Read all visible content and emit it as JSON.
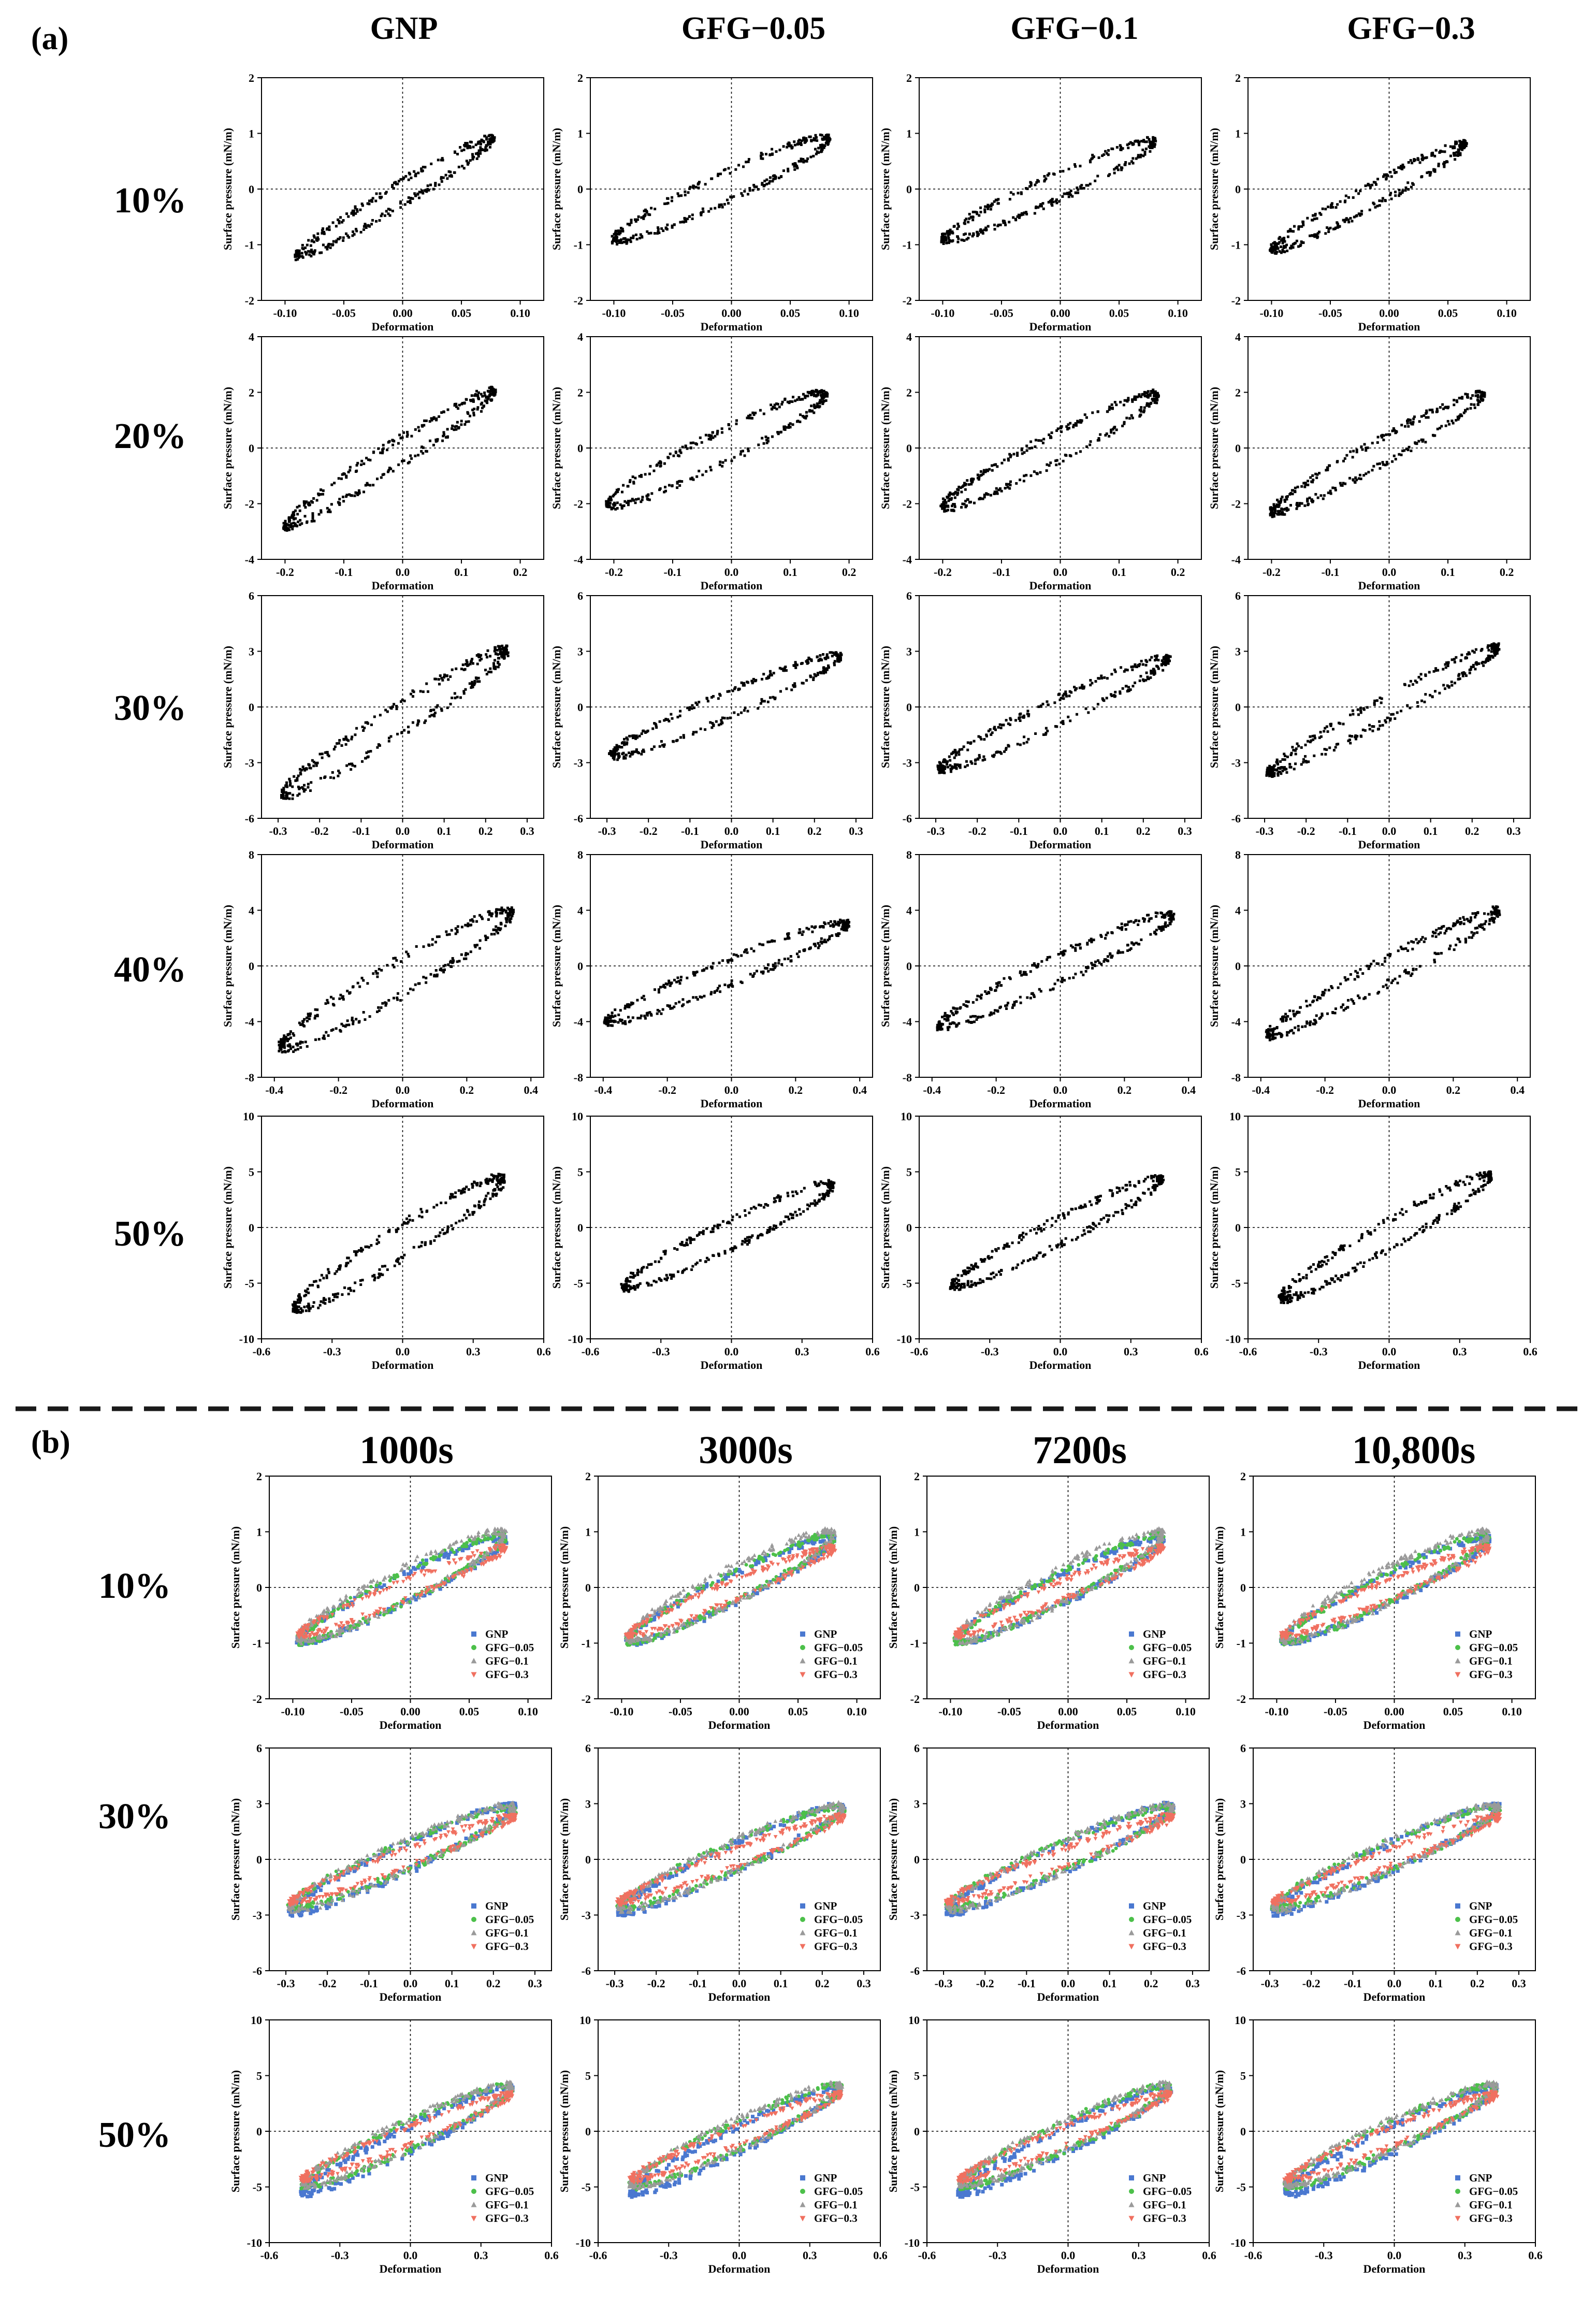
{
  "panel_labels": {
    "a": "(a)",
    "b": "(b)"
  },
  "column_headers_a": [
    "GNP",
    "GFG−0.05",
    "GFG−0.1",
    "GFG−0.3"
  ],
  "column_headers_b": [
    "1000s",
    "3000s",
    "7200s",
    "10,800s"
  ],
  "row_labels_a": [
    "10%",
    "20%",
    "30%",
    "40%",
    "50%"
  ],
  "row_labels_b": [
    "10%",
    "30%",
    "50%"
  ],
  "axis_labels": {
    "x": "Deformation",
    "y": "Surface pressure (mN/m)"
  },
  "legend": [
    {
      "name": "GNP",
      "color": "#4a78d0",
      "marker": "square"
    },
    {
      "name": "GFG−0.05",
      "color": "#4cc04a",
      "marker": "circle"
    },
    {
      "name": "GFG−0.1",
      "color": "#9a9a9a",
      "marker": "triangle-up"
    },
    {
      "name": "GFG−0.3",
      "color": "#f07060",
      "marker": "triangle-down"
    }
  ],
  "chart_data": [
    {
      "type": "scatter",
      "panel": "a",
      "row_label": "10%",
      "strain": 0.1,
      "x_range": [
        -0.12,
        0.12
      ],
      "x_ticks": [
        -0.1,
        -0.05,
        0.0,
        0.05,
        0.1
      ],
      "x_tick_labels": [
        "-0.10",
        "-0.05",
        "0.00",
        "0.05",
        "0.10"
      ],
      "y_range": [
        -2,
        2
      ],
      "y_ticks": [
        -2,
        -1,
        0,
        1,
        2
      ],
      "y_tick_labels": [
        "-2",
        "-1",
        "0",
        "1",
        "2"
      ],
      "series": [
        {
          "column": "GNP",
          "x_min": -0.09,
          "x_max": 0.077,
          "y_at_min": -1.2,
          "y_at_max": 0.9,
          "loop_width": 0.35
        },
        {
          "column": "GFG−0.05",
          "x_min": -0.1,
          "x_max": 0.083,
          "y_at_min": -0.9,
          "y_at_max": 0.9,
          "loop_width": 0.45
        },
        {
          "column": "GFG−0.1",
          "x_min": -0.1,
          "x_max": 0.08,
          "y_at_min": -0.9,
          "y_at_max": 0.85,
          "loop_width": 0.4
        },
        {
          "column": "GFG−0.3",
          "x_min": -0.1,
          "x_max": 0.065,
          "y_at_min": -1.1,
          "y_at_max": 0.8,
          "loop_width": 0.35
        }
      ]
    },
    {
      "type": "scatter",
      "panel": "a",
      "row_label": "20%",
      "strain": 0.2,
      "x_range": [
        -0.24,
        0.24
      ],
      "x_ticks": [
        -0.2,
        -0.1,
        0.0,
        0.1,
        0.2
      ],
      "x_tick_labels": [
        "-0.2",
        "-0.1",
        "0.0",
        "0.1",
        "0.2"
      ],
      "y_range": [
        -4,
        4
      ],
      "y_ticks": [
        -4,
        -2,
        0,
        2,
        4
      ],
      "y_tick_labels": [
        "-4",
        "-2",
        "0",
        "2",
        "4"
      ],
      "series": [
        {
          "column": "GNP",
          "x_min": -0.2,
          "x_max": 0.155,
          "y_at_min": -2.8,
          "y_at_max": 2.0,
          "loop_width": 0.8
        },
        {
          "column": "GFG−0.05",
          "x_min": -0.21,
          "x_max": 0.16,
          "y_at_min": -2.0,
          "y_at_max": 1.9,
          "loop_width": 1.0
        },
        {
          "column": "GFG−0.1",
          "x_min": -0.2,
          "x_max": 0.165,
          "y_at_min": -2.1,
          "y_at_max": 1.9,
          "loop_width": 0.9
        },
        {
          "column": "GFG−0.3",
          "x_min": -0.2,
          "x_max": 0.16,
          "y_at_min": -2.3,
          "y_at_max": 1.9,
          "loop_width": 0.8
        }
      ]
    },
    {
      "type": "scatter",
      "panel": "a",
      "row_label": "30%",
      "strain": 0.3,
      "x_range": [
        -0.34,
        0.34
      ],
      "x_ticks": [
        -0.3,
        -0.2,
        -0.1,
        0.0,
        0.1,
        0.2,
        0.3
      ],
      "x_tick_labels": [
        "-0.3",
        "-0.2",
        "-0.1",
        "0.0",
        "0.1",
        "0.2",
        "0.3"
      ],
      "y_range": [
        -6,
        6
      ],
      "y_ticks": [
        -6,
        -3,
        0,
        3,
        6
      ],
      "y_tick_labels": [
        "-6",
        "-3",
        "0",
        "3",
        "6"
      ],
      "series": [
        {
          "column": "GNP",
          "x_min": -0.29,
          "x_max": 0.25,
          "y_at_min": -4.7,
          "y_at_max": 3.0,
          "loop_width": 1.4
        },
        {
          "column": "GFG−0.05",
          "x_min": -0.29,
          "x_max": 0.26,
          "y_at_min": -2.6,
          "y_at_max": 2.7,
          "loop_width": 1.2
        },
        {
          "column": "GFG−0.1",
          "x_min": -0.29,
          "x_max": 0.26,
          "y_at_min": -3.3,
          "y_at_max": 2.6,
          "loop_width": 1.2
        },
        {
          "column": "GFG−0.3",
          "x_min": -0.29,
          "x_max": 0.26,
          "y_at_min": -3.5,
          "y_at_max": 3.2,
          "loop_width": 1.1
        }
      ]
    },
    {
      "type": "scatter",
      "panel": "a",
      "row_label": "40%",
      "strain": 0.4,
      "x_range": [
        -0.44,
        0.44
      ],
      "x_ticks": [
        -0.4,
        -0.2,
        0.0,
        0.2,
        0.4
      ],
      "x_tick_labels": [
        "-0.4",
        "-0.2",
        "0.0",
        "0.2",
        "0.4"
      ],
      "y_range": [
        -8,
        8
      ],
      "y_ticks": [
        -8,
        -4,
        0,
        4,
        8
      ],
      "y_tick_labels": [
        "-8",
        "-4",
        "0",
        "4",
        "8"
      ],
      "series": [
        {
          "column": "GNP",
          "x_min": -0.38,
          "x_max": 0.34,
          "y_at_min": -5.8,
          "y_at_max": 3.8,
          "loop_width": 2.2
        },
        {
          "column": "GFG−0.05",
          "x_min": -0.39,
          "x_max": 0.36,
          "y_at_min": -4.0,
          "y_at_max": 3.0,
          "loop_width": 1.6
        },
        {
          "column": "GFG−0.1",
          "x_min": -0.38,
          "x_max": 0.35,
          "y_at_min": -4.3,
          "y_at_max": 3.6,
          "loop_width": 1.7
        },
        {
          "column": "GFG−0.3",
          "x_min": -0.38,
          "x_max": 0.34,
          "y_at_min": -5.0,
          "y_at_max": 3.9,
          "loop_width": 1.6
        }
      ]
    },
    {
      "type": "scatter",
      "panel": "a",
      "row_label": "50%",
      "strain": 0.5,
      "x_range": [
        -0.6,
        0.6
      ],
      "x_ticks": [
        -0.6,
        -0.3,
        0.0,
        0.3,
        0.6
      ],
      "x_tick_labels": [
        "-0.6",
        "-0.3",
        "0.0",
        "0.3",
        "0.6"
      ],
      "y_range": [
        -10,
        10
      ],
      "y_ticks": [
        -10,
        -5,
        0,
        5,
        10
      ],
      "y_tick_labels": [
        "-10",
        "-5",
        "0",
        "5",
        "10"
      ],
      "series": [
        {
          "column": "GNP",
          "x_min": -0.46,
          "x_max": 0.43,
          "y_at_min": -7.2,
          "y_at_max": 4.3,
          "loop_width": 2.6
        },
        {
          "column": "GFG−0.05",
          "x_min": -0.46,
          "x_max": 0.43,
          "y_at_min": -5.3,
          "y_at_max": 3.8,
          "loop_width": 2.2
        },
        {
          "column": "GFG−0.1",
          "x_min": -0.46,
          "x_max": 0.43,
          "y_at_min": -5.2,
          "y_at_max": 4.3,
          "loop_width": 2.0
        },
        {
          "column": "GFG−0.3",
          "x_min": -0.46,
          "x_max": 0.43,
          "y_at_min": -6.3,
          "y_at_max": 4.6,
          "loop_width": 2.2
        }
      ]
    },
    {
      "type": "scatter",
      "panel": "b",
      "row_label": "10%",
      "strain": 0.1,
      "x_range": [
        -0.12,
        0.12
      ],
      "x_ticks": [
        -0.1,
        -0.05,
        0.0,
        0.05,
        0.1
      ],
      "x_tick_labels": [
        "-0.10",
        "-0.05",
        "0.00",
        "0.05",
        "0.10"
      ],
      "y_range": [
        -2,
        2
      ],
      "y_ticks": [
        -2,
        -1,
        0,
        1,
        2
      ],
      "y_tick_labels": [
        "-2",
        "-1",
        "0",
        "1",
        "2"
      ],
      "columns": [
        "1000s",
        "3000s",
        "7200s",
        "10,800s"
      ],
      "series": [
        {
          "name": "GNP",
          "x_min": -0.095,
          "x_max": 0.08,
          "y_at_min": -0.95,
          "y_at_max": 0.85,
          "loop_width": 0.45
        },
        {
          "name": "GFG−0.05",
          "x_min": -0.095,
          "x_max": 0.08,
          "y_at_min": -0.95,
          "y_at_max": 0.9,
          "loop_width": 0.45
        },
        {
          "name": "GFG−0.1",
          "x_min": -0.095,
          "x_max": 0.08,
          "y_at_min": -0.9,
          "y_at_max": 0.95,
          "loop_width": 0.55
        },
        {
          "name": "GFG−0.3",
          "x_min": -0.095,
          "x_max": 0.08,
          "y_at_min": -0.85,
          "y_at_max": 0.7,
          "loop_width": 0.3
        }
      ]
    },
    {
      "type": "scatter",
      "panel": "b",
      "row_label": "30%",
      "strain": 0.3,
      "x_range": [
        -0.34,
        0.34
      ],
      "x_ticks": [
        -0.3,
        -0.2,
        -0.1,
        0.0,
        0.1,
        0.2,
        0.3
      ],
      "x_tick_labels": [
        "-0.3",
        "-0.2",
        "-0.1",
        "0.0",
        "0.1",
        "0.2",
        "0.3"
      ],
      "y_range": [
        -6,
        6
      ],
      "y_ticks": [
        -6,
        -3,
        0,
        3,
        6
      ],
      "y_tick_labels": [
        "-6",
        "-3",
        "0",
        "3",
        "6"
      ],
      "columns": [
        "1000s",
        "3000s",
        "7200s",
        "10,800s"
      ],
      "series": [
        {
          "name": "GNP",
          "x_min": -0.29,
          "x_max": 0.25,
          "y_at_min": -2.8,
          "y_at_max": 2.8,
          "loop_width": 1.3
        },
        {
          "name": "GFG−0.05",
          "x_min": -0.29,
          "x_max": 0.25,
          "y_at_min": -2.5,
          "y_at_max": 2.7,
          "loop_width": 1.3
        },
        {
          "name": "GFG−0.1",
          "x_min": -0.29,
          "x_max": 0.25,
          "y_at_min": -2.6,
          "y_at_max": 2.8,
          "loop_width": 1.4
        },
        {
          "name": "GFG−0.3",
          "x_min": -0.29,
          "x_max": 0.25,
          "y_at_min": -2.3,
          "y_at_max": 2.3,
          "loop_width": 0.8
        }
      ]
    },
    {
      "type": "scatter",
      "panel": "b",
      "row_label": "50%",
      "strain": 0.5,
      "x_range": [
        -0.6,
        0.6
      ],
      "x_ticks": [
        -0.6,
        -0.3,
        0.0,
        0.3,
        0.6
      ],
      "x_tick_labels": [
        "-0.6",
        "-0.3",
        "0.0",
        "0.3",
        "0.6"
      ],
      "y_range": [
        -10,
        10
      ],
      "y_ticks": [
        -10,
        -5,
        0,
        5,
        10
      ],
      "y_tick_labels": [
        "-10",
        "-5",
        "0",
        "5",
        "10"
      ],
      "columns": [
        "1000s",
        "3000s",
        "7200s",
        "10,800s"
      ],
      "series": [
        {
          "name": "GNP",
          "x_min": -0.46,
          "x_max": 0.43,
          "y_at_min": -5.5,
          "y_at_max": 3.8,
          "loop_width": 2.0
        },
        {
          "name": "GFG−0.05",
          "x_min": -0.46,
          "x_max": 0.43,
          "y_at_min": -4.8,
          "y_at_max": 3.9,
          "loop_width": 2.2
        },
        {
          "name": "GFG−0.1",
          "x_min": -0.46,
          "x_max": 0.43,
          "y_at_min": -4.7,
          "y_at_max": 4.0,
          "loop_width": 2.3
        },
        {
          "name": "GFG−0.3",
          "x_min": -0.46,
          "x_max": 0.43,
          "y_at_min": -4.3,
          "y_at_max": 3.3,
          "loop_width": 1.4
        }
      ]
    }
  ]
}
